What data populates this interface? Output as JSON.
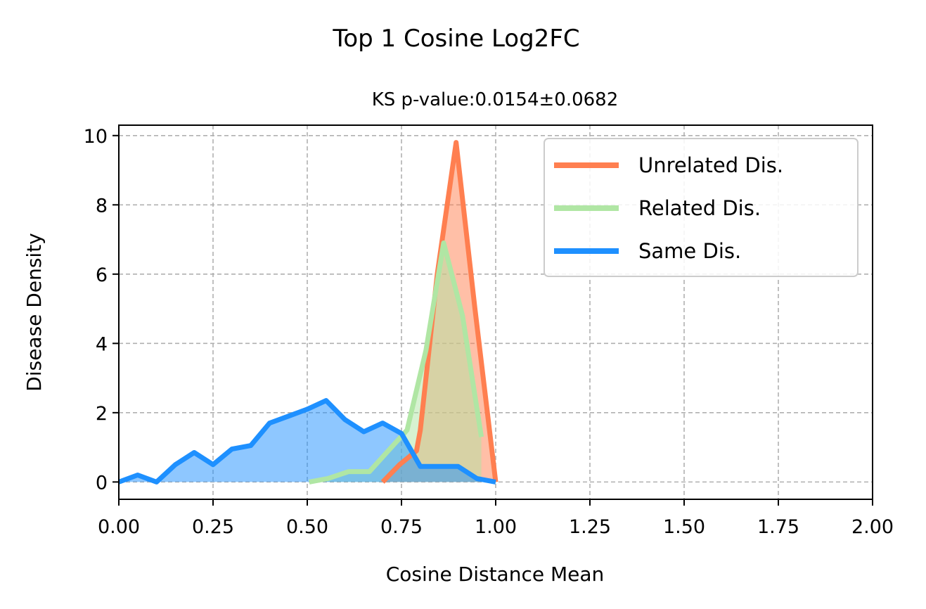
{
  "chart_data": {
    "type": "area",
    "title": "Top 1 Cosine Log2FC",
    "subtitle": "KS p-value:0.0154±0.0682",
    "xlabel": "Cosine Distance Mean",
    "ylabel": "Disease Density",
    "xlim": [
      0,
      2
    ],
    "ylim": [
      -0.5,
      10.3
    ],
    "xticks": [
      "0.00",
      "0.25",
      "0.50",
      "0.75",
      "1.00",
      "1.25",
      "1.50",
      "1.75",
      "2.00"
    ],
    "yticks": [
      "0",
      "2",
      "4",
      "6",
      "8",
      "10"
    ],
    "grid": true,
    "legend_position": "top-right",
    "series": [
      {
        "name": "Unrelated Dis.",
        "color": "#ff7f50",
        "x": [
          0.7,
          0.745,
          0.79,
          0.8,
          0.845,
          0.895,
          0.945,
          1.0
        ],
        "y": [
          0,
          0.5,
          0.9,
          1.5,
          6.0,
          9.8,
          5.0,
          0
        ]
      },
      {
        "name": "Related Dis.",
        "color": "#b0e6a4",
        "x": [
          0.505,
          0.555,
          0.61,
          0.665,
          0.715,
          0.765,
          0.815,
          0.862,
          0.912,
          0.962
        ],
        "y": [
          0,
          0.1,
          0.3,
          0.3,
          0.9,
          1.5,
          3.8,
          6.9,
          4.8,
          1.3
        ]
      },
      {
        "name": "Same Dis.",
        "color": "#1e90ff",
        "x": [
          0.0,
          0.05,
          0.1,
          0.15,
          0.2,
          0.25,
          0.3,
          0.35,
          0.4,
          0.45,
          0.5,
          0.55,
          0.6,
          0.65,
          0.7,
          0.75,
          0.8,
          0.85,
          0.9,
          0.95,
          1.0
        ],
        "y": [
          0.0,
          0.2,
          0.0,
          0.5,
          0.85,
          0.5,
          0.95,
          1.05,
          1.7,
          1.9,
          2.1,
          2.35,
          1.8,
          1.45,
          1.7,
          1.4,
          0.45,
          0.45,
          0.45,
          0.1,
          0.0
        ]
      }
    ]
  }
}
